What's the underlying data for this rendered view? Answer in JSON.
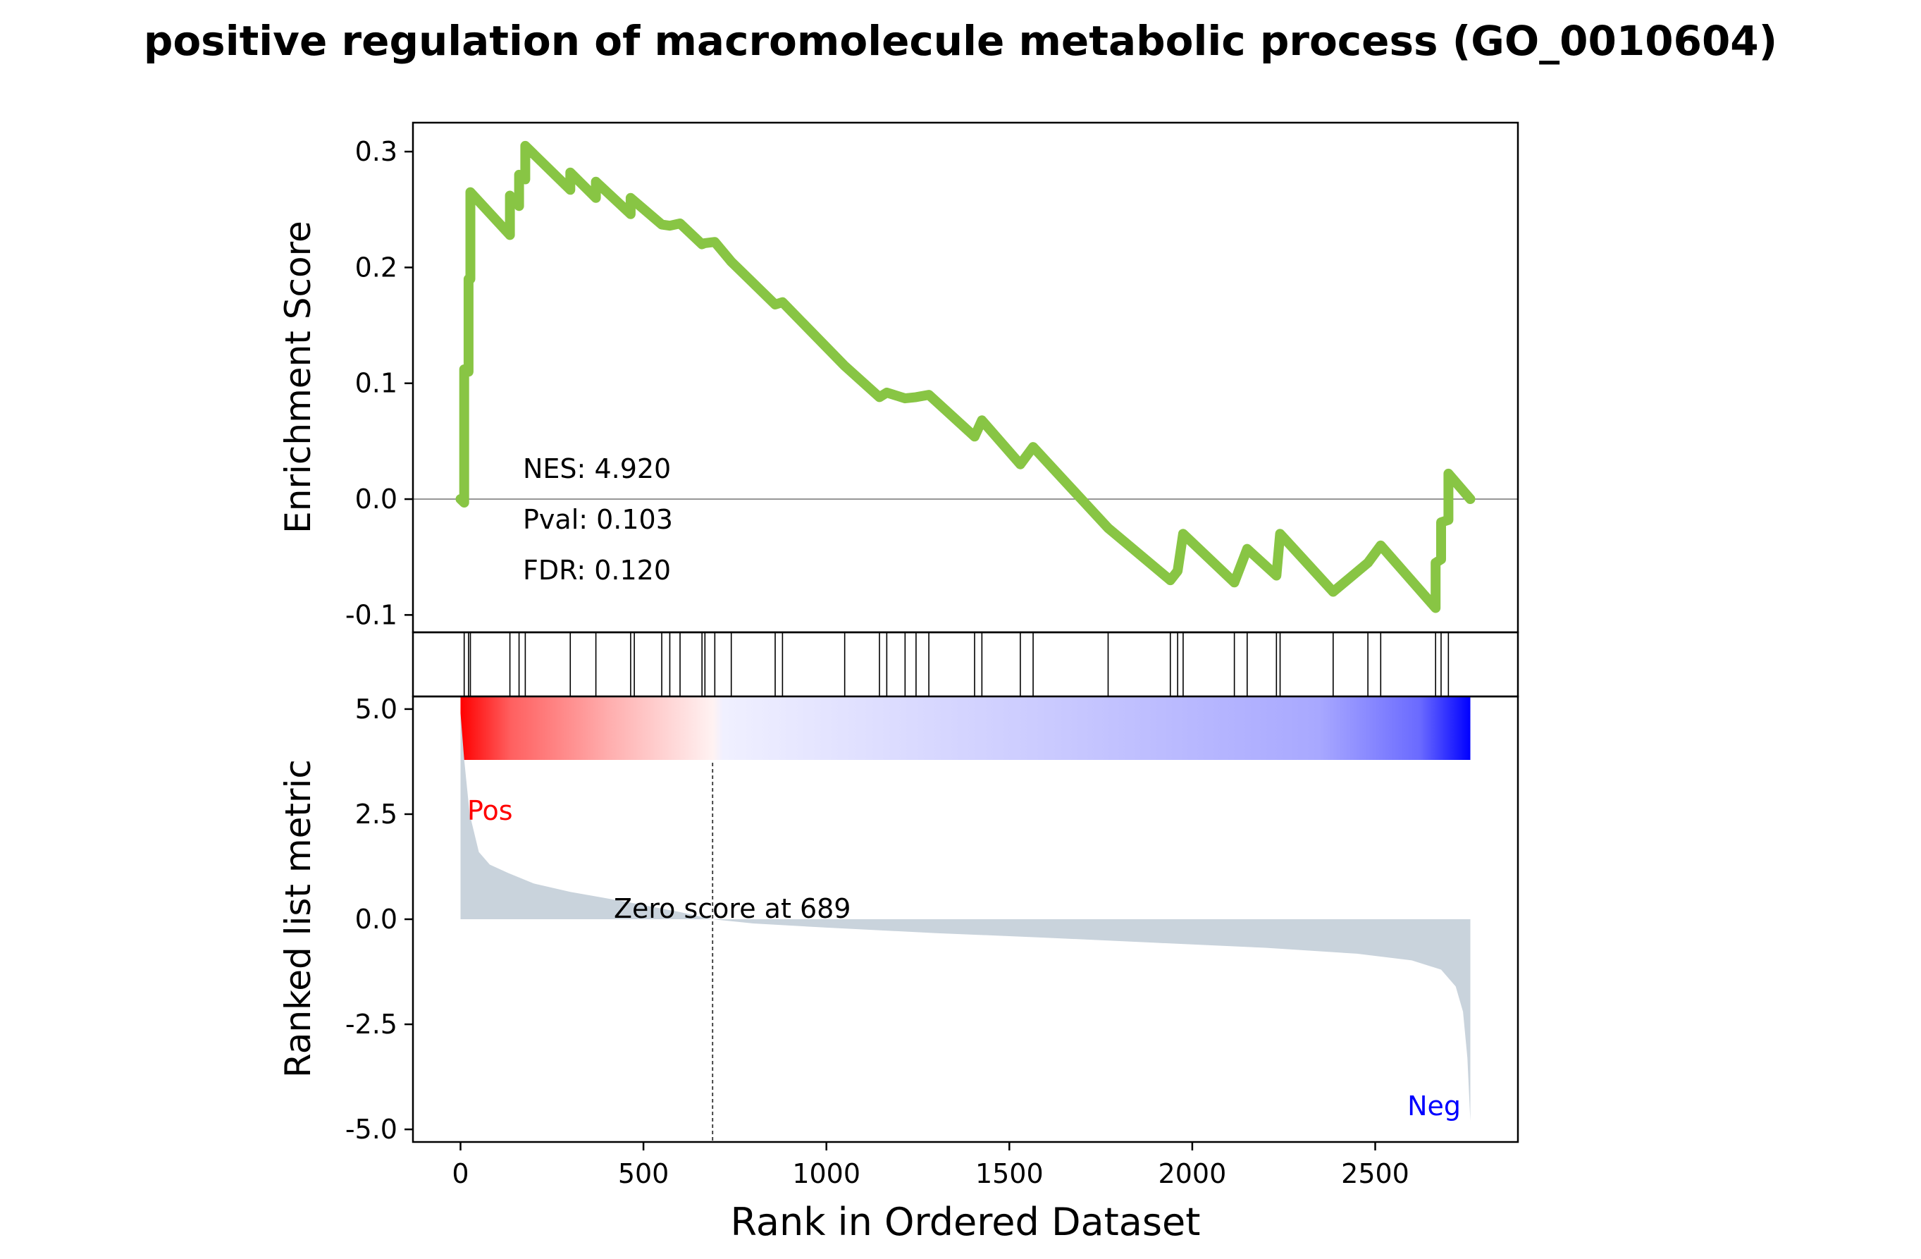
{
  "chart_data": {
    "type": "line",
    "title": "positive regulation of macromolecule metabolic process (GO_0010604)",
    "xlabel": "Rank in Ordered Dataset",
    "xlim": [
      -130,
      2890
    ],
    "x_ticks": [
      0,
      500,
      1000,
      1500,
      2000,
      2500
    ],
    "x_tick_labels": [
      "0",
      "500",
      "1000",
      "1500",
      "2000",
      "2500"
    ],
    "enrichment": {
      "ylabel": "Enrichment Score",
      "ylim": [
        -0.115,
        0.325
      ],
      "y_ticks": [
        -0.1,
        0.0,
        0.1,
        0.2,
        0.3
      ],
      "y_tick_labels": [
        "-0.1",
        "0.0",
        "0.1",
        "0.2",
        "0.3"
      ],
      "line_color": "#88c544",
      "zero_line": 0,
      "stats": [
        "NES: 4.920",
        "Pval: 0.103",
        "FDR: 0.120"
      ],
      "hit_ranks": [
        10,
        22,
        27,
        135,
        160,
        177,
        300,
        370,
        465,
        475,
        550,
        572,
        600,
        660,
        668,
        695,
        740,
        860,
        880,
        1050,
        1145,
        1165,
        1215,
        1245,
        1280,
        1405,
        1425,
        1530,
        1565,
        1770,
        1940,
        1960,
        1975,
        2115,
        2150,
        2230,
        2240,
        2385,
        2480,
        2515,
        2665,
        2680,
        2700
      ],
      "points": [
        [
          0,
          0.0
        ],
        [
          10,
          -0.003
        ],
        [
          10,
          0.112
        ],
        [
          22,
          0.11
        ],
        [
          22,
          0.19
        ],
        [
          27,
          0.19
        ],
        [
          27,
          0.265
        ],
        [
          135,
          0.228
        ],
        [
          135,
          0.262
        ],
        [
          160,
          0.253
        ],
        [
          160,
          0.28
        ],
        [
          177,
          0.276
        ],
        [
          177,
          0.305
        ],
        [
          300,
          0.267
        ],
        [
          300,
          0.282
        ],
        [
          370,
          0.26
        ],
        [
          370,
          0.274
        ],
        [
          465,
          0.246
        ],
        [
          465,
          0.26
        ],
        [
          550,
          0.237
        ],
        [
          572,
          0.236
        ],
        [
          600,
          0.238
        ],
        [
          660,
          0.22
        ],
        [
          668,
          0.221
        ],
        [
          695,
          0.222
        ],
        [
          740,
          0.205
        ],
        [
          860,
          0.168
        ],
        [
          880,
          0.17
        ],
        [
          1050,
          0.115
        ],
        [
          1145,
          0.088
        ],
        [
          1165,
          0.092
        ],
        [
          1215,
          0.087
        ],
        [
          1245,
          0.088
        ],
        [
          1280,
          0.09
        ],
        [
          1405,
          0.054
        ],
        [
          1425,
          0.068
        ],
        [
          1530,
          0.03
        ],
        [
          1565,
          0.045
        ],
        [
          1770,
          -0.025
        ],
        [
          1940,
          -0.07
        ],
        [
          1960,
          -0.062
        ],
        [
          1975,
          -0.03
        ],
        [
          2115,
          -0.072
        ],
        [
          2150,
          -0.043
        ],
        [
          2230,
          -0.066
        ],
        [
          2240,
          -0.03
        ],
        [
          2385,
          -0.08
        ],
        [
          2480,
          -0.055
        ],
        [
          2515,
          -0.04
        ],
        [
          2665,
          -0.094
        ],
        [
          2665,
          -0.055
        ],
        [
          2680,
          -0.052
        ],
        [
          2680,
          -0.02
        ],
        [
          2700,
          -0.018
        ],
        [
          2700,
          0.022
        ],
        [
          2760,
          0.0
        ]
      ]
    },
    "ranked_metric": {
      "ylabel": "Ranked list metric",
      "ylim": [
        -5.3,
        5.3
      ],
      "y_ticks": [
        -5.0,
        -2.5,
        0.0,
        2.5,
        5.0
      ],
      "y_tick_labels": [
        "-5.0",
        "-2.5",
        "0.0",
        "2.5",
        "5.0"
      ],
      "fill_color": "#c9d3dc",
      "zero_cross": 689,
      "zero_label": "Zero score at 689",
      "pos_label": "Pos",
      "neg_label": "Neg",
      "pos_color": "#ff0000",
      "neg_color": "#0000ff",
      "profile": [
        [
          0,
          4.9
        ],
        [
          10,
          3.8
        ],
        [
          25,
          2.5
        ],
        [
          50,
          1.6
        ],
        [
          80,
          1.3
        ],
        [
          130,
          1.1
        ],
        [
          200,
          0.85
        ],
        [
          300,
          0.65
        ],
        [
          450,
          0.42
        ],
        [
          600,
          0.17
        ],
        [
          689,
          0.0
        ],
        [
          800,
          -0.1
        ],
        [
          1000,
          -0.2
        ],
        [
          1300,
          -0.33
        ],
        [
          1600,
          -0.44
        ],
        [
          1900,
          -0.56
        ],
        [
          2200,
          -0.68
        ],
        [
          2450,
          -0.82
        ],
        [
          2600,
          -0.98
        ],
        [
          2680,
          -1.2
        ],
        [
          2720,
          -1.6
        ],
        [
          2740,
          -2.2
        ],
        [
          2752,
          -3.3
        ],
        [
          2760,
          -4.8
        ]
      ]
    },
    "x_max": 2760
  }
}
